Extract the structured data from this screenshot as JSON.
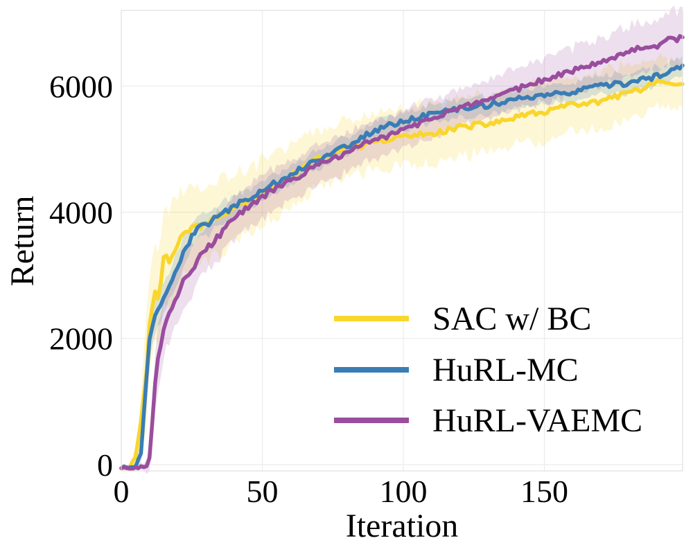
{
  "chart_data": {
    "type": "line",
    "title": "",
    "xlabel": "Iteration",
    "ylabel": "Return",
    "xlim": [
      0,
      199
    ],
    "ylim": [
      -100,
      7200
    ],
    "xticks": [
      0,
      50,
      100,
      150
    ],
    "yticks": [
      0,
      2000,
      4000,
      6000
    ],
    "grid": true,
    "legend_position": "lower-right",
    "series": [
      {
        "name": "SAC w/ BC",
        "color": "#f9d62e",
        "knots_x": [
          0,
          3,
          5,
          7,
          9,
          10,
          11,
          12,
          13,
          14,
          15,
          16,
          17,
          18,
          20,
          22,
          25,
          28,
          30,
          35,
          40,
          50,
          60,
          70,
          80,
          90,
          100,
          110,
          120,
          130,
          140,
          150,
          160,
          170,
          180,
          185,
          190,
          195,
          199
        ],
        "knots_y": [
          -50,
          -30,
          100,
          700,
          1500,
          2200,
          2500,
          2750,
          2650,
          2900,
          3300,
          3300,
          3200,
          3300,
          3500,
          3650,
          3750,
          3780,
          3800,
          3950,
          4050,
          4300,
          4580,
          4850,
          5000,
          5100,
          5200,
          5250,
          5350,
          5400,
          5500,
          5600,
          5700,
          5750,
          5900,
          5950,
          6050,
          6020,
          6000
        ],
        "band_half_width": [
          0,
          50,
          150,
          400,
          900,
          900,
          900,
          900,
          900,
          900,
          900,
          900,
          850,
          800,
          750,
          700,
          650,
          650,
          650,
          600,
          550,
          500,
          500,
          450,
          450,
          450,
          450,
          450,
          450,
          450,
          450,
          450,
          450,
          450,
          450,
          450,
          400,
          400,
          350
        ]
      },
      {
        "name": "HuRL-MC",
        "color": "#3a7db5",
        "knots_x": [
          0,
          3,
          5,
          7,
          9,
          10,
          11,
          12,
          14,
          16,
          18,
          20,
          22,
          25,
          28,
          30,
          35,
          40,
          50,
          60,
          70,
          80,
          90,
          100,
          110,
          120,
          130,
          140,
          150,
          160,
          170,
          180,
          190,
          195,
          199
        ],
        "knots_y": [
          -50,
          -50,
          -30,
          200,
          1400,
          2000,
          2200,
          2350,
          2550,
          2750,
          2900,
          3150,
          3350,
          3600,
          3800,
          3800,
          3950,
          4100,
          4350,
          4600,
          4850,
          5050,
          5300,
          5450,
          5550,
          5650,
          5700,
          5800,
          5850,
          5900,
          6000,
          6050,
          6150,
          6250,
          6300
        ],
        "band_half_width": [
          0,
          30,
          60,
          150,
          300,
          300,
          280,
          260,
          250,
          240,
          230,
          220,
          210,
          200,
          190,
          180,
          170,
          160,
          150,
          150,
          150,
          150,
          150,
          150,
          150,
          150,
          150,
          150,
          150,
          150,
          150,
          150,
          150,
          150,
          150
        ]
      },
      {
        "name": "HuRL-VAEMC",
        "color": "#9a4d9e",
        "knots_x": [
          0,
          3,
          5,
          7,
          8,
          9,
          10,
          11,
          12,
          13,
          14,
          15,
          16,
          18,
          20,
          22,
          25,
          28,
          30,
          35,
          40,
          50,
          60,
          70,
          80,
          90,
          100,
          110,
          120,
          130,
          140,
          150,
          160,
          170,
          180,
          190,
          195,
          199
        ],
        "knots_y": [
          -50,
          -50,
          -50,
          -50,
          -50,
          -30,
          100,
          700,
          1300,
          1700,
          1900,
          2150,
          2300,
          2500,
          2700,
          2900,
          3100,
          3300,
          3400,
          3650,
          3900,
          4250,
          4500,
          4750,
          4950,
          5150,
          5300,
          5500,
          5650,
          5750,
          5950,
          6100,
          6250,
          6400,
          6550,
          6650,
          6750,
          6750
        ],
        "band_half_width": [
          0,
          20,
          30,
          40,
          50,
          100,
          200,
          300,
          400,
          450,
          450,
          450,
          450,
          450,
          450,
          420,
          400,
          380,
          370,
          360,
          350,
          330,
          320,
          310,
          300,
          300,
          300,
          300,
          300,
          300,
          320,
          350,
          350,
          380,
          400,
          420,
          430,
          450
        ]
      }
    ]
  }
}
